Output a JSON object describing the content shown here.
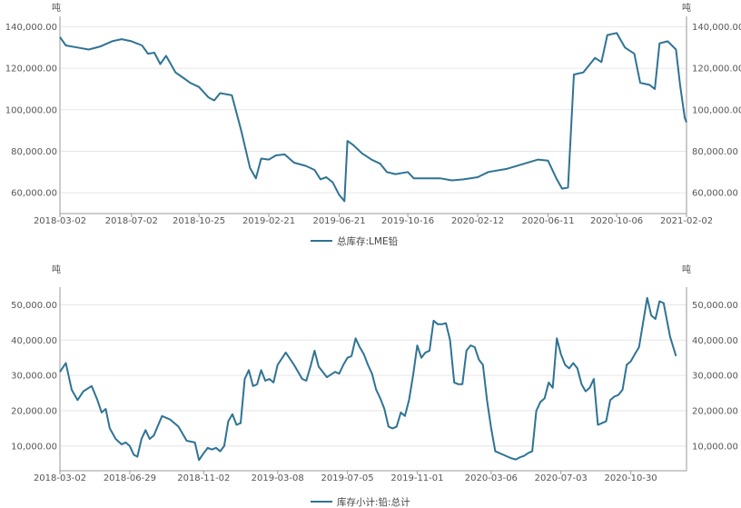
{
  "chart_data": [
    {
      "type": "line",
      "unit_left": "吨",
      "unit_right": "吨",
      "yticks": [
        "60,000.00",
        "80,000.00",
        "100,000.00",
        "120,000.00",
        "140,000.00"
      ],
      "ytick_values": [
        60000,
        80000,
        100000,
        120000,
        140000
      ],
      "ylim": [
        50000,
        145000
      ],
      "xticks": [
        "2018-03-02",
        "2018-07-02",
        "2018-10-25",
        "2019-02-21",
        "2019-06-21",
        "2019-10-16",
        "2020-02-12",
        "2020-06-11",
        "2020-10-06",
        "2021-02-02"
      ],
      "xlim": [
        "2018-03-02",
        "2021-02-02"
      ],
      "grid": true,
      "legend_position": "bottom-center",
      "series": [
        {
          "name": "总库存:LME铅",
          "color": "#2e7394",
          "points": [
            [
              "2018-03-02",
              135000
            ],
            [
              "2018-03-12",
              131000
            ],
            [
              "2018-04-01",
              130000
            ],
            [
              "2018-04-20",
              129000
            ],
            [
              "2018-05-10",
              130500
            ],
            [
              "2018-05-30",
              133000
            ],
            [
              "2018-06-15",
              134000
            ],
            [
              "2018-07-02",
              133000
            ],
            [
              "2018-07-20",
              131000
            ],
            [
              "2018-07-30",
              127000
            ],
            [
              "2018-08-10",
              127500
            ],
            [
              "2018-08-20",
              122000
            ],
            [
              "2018-08-30",
              126000
            ],
            [
              "2018-09-15",
              118000
            ],
            [
              "2018-09-30",
              115000
            ],
            [
              "2018-10-10",
              113000
            ],
            [
              "2018-10-25",
              111000
            ],
            [
              "2018-11-10",
              106000
            ],
            [
              "2018-11-20",
              104500
            ],
            [
              "2018-11-30",
              108000
            ],
            [
              "2018-12-20",
              107000
            ],
            [
              "2019-01-05",
              90000
            ],
            [
              "2019-01-20",
              72000
            ],
            [
              "2019-01-30",
              67000
            ],
            [
              "2019-02-08",
              76500
            ],
            [
              "2019-02-21",
              76000
            ],
            [
              "2019-03-05",
              78000
            ],
            [
              "2019-03-20",
              78500
            ],
            [
              "2019-04-05",
              74500
            ],
            [
              "2019-04-25",
              73000
            ],
            [
              "2019-05-10",
              71000
            ],
            [
              "2019-05-20",
              66500
            ],
            [
              "2019-05-30",
              67500
            ],
            [
              "2019-06-10",
              65000
            ],
            [
              "2019-06-21",
              59000
            ],
            [
              "2019-06-30",
              56000
            ],
            [
              "2019-07-05",
              85000
            ],
            [
              "2019-07-15",
              83000
            ],
            [
              "2019-07-30",
              79000
            ],
            [
              "2019-08-15",
              76000
            ],
            [
              "2019-08-30",
              74000
            ],
            [
              "2019-09-10",
              70000
            ],
            [
              "2019-09-25",
              69000
            ],
            [
              "2019-10-16",
              70000
            ],
            [
              "2019-10-26",
              67000
            ],
            [
              "2019-11-15",
              67000
            ],
            [
              "2019-12-10",
              67000
            ],
            [
              "2019-12-30",
              66000
            ],
            [
              "2020-01-20",
              66500
            ],
            [
              "2020-02-12",
              67500
            ],
            [
              "2020-03-01",
              70000
            ],
            [
              "2020-04-01",
              71500
            ],
            [
              "2020-05-01",
              74000
            ],
            [
              "2020-05-25",
              76000
            ],
            [
              "2020-06-11",
              75500
            ],
            [
              "2020-06-25",
              67000
            ],
            [
              "2020-07-05",
              62000
            ],
            [
              "2020-07-15",
              62500
            ],
            [
              "2020-07-25",
              117000
            ],
            [
              "2020-08-10",
              118000
            ],
            [
              "2020-08-30",
              125000
            ],
            [
              "2020-09-10",
              123000
            ],
            [
              "2020-09-20",
              136000
            ],
            [
              "2020-10-06",
              137000
            ],
            [
              "2020-10-20",
              130000
            ],
            [
              "2020-11-05",
              127000
            ],
            [
              "2020-11-15",
              113000
            ],
            [
              "2020-12-01",
              112000
            ],
            [
              "2020-12-10",
              110000
            ],
            [
              "2020-12-18",
              132000
            ],
            [
              "2021-01-01",
              133000
            ],
            [
              "2021-01-15",
              129000
            ],
            [
              "2021-01-22",
              112000
            ],
            [
              "2021-01-30",
              96000
            ],
            [
              "2021-02-02",
              94000
            ]
          ]
        }
      ]
    },
    {
      "type": "line",
      "unit_left": "吨",
      "unit_right": "吨",
      "yticks": [
        "10,000.00",
        "20,000.00",
        "30,000.00",
        "40,000.00",
        "50,000.00"
      ],
      "ytick_values": [
        10000,
        20000,
        30000,
        40000,
        50000
      ],
      "ylim": [
        3000,
        55000
      ],
      "xticks": [
        "2018-03-02",
        "2018-06-29",
        "2018-11-02",
        "2019-03-08",
        "2019-07-05",
        "2019-11-01",
        "2020-03-06",
        "2020-07-03",
        "2020-10-30"
      ],
      "xlim": [
        "2018-03-02",
        "2021-02-02"
      ],
      "grid": true,
      "legend_position": "bottom-center",
      "series": [
        {
          "name": "库存小计:铅:总计",
          "color": "#2e7394",
          "points": [
            [
              "2018-03-02",
              31000
            ],
            [
              "2018-03-12",
              33500
            ],
            [
              "2018-03-22",
              26000
            ],
            [
              "2018-04-01",
              23000
            ],
            [
              "2018-04-11",
              25500
            ],
            [
              "2018-04-25",
              27000
            ],
            [
              "2018-05-05",
              23000
            ],
            [
              "2018-05-12",
              19500
            ],
            [
              "2018-05-19",
              20500
            ],
            [
              "2018-05-26",
              15000
            ],
            [
              "2018-06-05",
              12000
            ],
            [
              "2018-06-15",
              10500
            ],
            [
              "2018-06-22",
              11000
            ],
            [
              "2018-06-29",
              10000
            ],
            [
              "2018-07-06",
              7500
            ],
            [
              "2018-07-12",
              7000
            ],
            [
              "2018-07-19",
              12000
            ],
            [
              "2018-07-26",
              14500
            ],
            [
              "2018-08-02",
              12000
            ],
            [
              "2018-08-09",
              13000
            ],
            [
              "2018-08-23",
              18500
            ],
            [
              "2018-09-06",
              17500
            ],
            [
              "2018-09-20",
              15500
            ],
            [
              "2018-10-04",
              11500
            ],
            [
              "2018-10-18",
              11000
            ],
            [
              "2018-10-25",
              6000
            ],
            [
              "2018-11-02",
              8000
            ],
            [
              "2018-11-09",
              9500
            ],
            [
              "2018-11-16",
              9000
            ],
            [
              "2018-11-23",
              9500
            ],
            [
              "2018-11-30",
              8500
            ],
            [
              "2018-12-07",
              10000
            ],
            [
              "2018-12-14",
              17000
            ],
            [
              "2018-12-21",
              19000
            ],
            [
              "2018-12-28",
              16000
            ],
            [
              "2019-01-04",
              16500
            ],
            [
              "2019-01-11",
              29000
            ],
            [
              "2019-01-18",
              31500
            ],
            [
              "2019-01-25",
              27000
            ],
            [
              "2019-02-01",
              27500
            ],
            [
              "2019-02-08",
              31500
            ],
            [
              "2019-02-15",
              28500
            ],
            [
              "2019-02-22",
              29000
            ],
            [
              "2019-03-01",
              28000
            ],
            [
              "2019-03-08",
              33000
            ],
            [
              "2019-03-22",
              36500
            ],
            [
              "2019-04-05",
              33000
            ],
            [
              "2019-04-19",
              29000
            ],
            [
              "2019-04-26",
              28500
            ],
            [
              "2019-05-03",
              32500
            ],
            [
              "2019-05-10",
              37000
            ],
            [
              "2019-05-17",
              32500
            ],
            [
              "2019-05-31",
              29500
            ],
            [
              "2019-06-14",
              31000
            ],
            [
              "2019-06-21",
              30500
            ],
            [
              "2019-06-28",
              33000
            ],
            [
              "2019-07-05",
              35000
            ],
            [
              "2019-07-12",
              35500
            ],
            [
              "2019-07-19",
              40500
            ],
            [
              "2019-07-26",
              38000
            ],
            [
              "2019-08-02",
              36000
            ],
            [
              "2019-08-09",
              33000
            ],
            [
              "2019-08-16",
              30500
            ],
            [
              "2019-08-23",
              26000
            ],
            [
              "2019-08-30",
              23500
            ],
            [
              "2019-09-06",
              20500
            ],
            [
              "2019-09-13",
              15500
            ],
            [
              "2019-09-20",
              15000
            ],
            [
              "2019-09-27",
              15500
            ],
            [
              "2019-10-04",
              19500
            ],
            [
              "2019-10-11",
              18500
            ],
            [
              "2019-10-18",
              23000
            ],
            [
              "2019-10-25",
              30000
            ],
            [
              "2019-11-01",
              38500
            ],
            [
              "2019-11-08",
              35000
            ],
            [
              "2019-11-15",
              36500
            ],
            [
              "2019-11-22",
              37000
            ],
            [
              "2019-11-29",
              45500
            ],
            [
              "2019-12-06",
              44500
            ],
            [
              "2019-12-13",
              44500
            ],
            [
              "2019-12-20",
              44800
            ],
            [
              "2019-12-27",
              40000
            ],
            [
              "2020-01-03",
              28000
            ],
            [
              "2020-01-10",
              27500
            ],
            [
              "2020-01-17",
              27500
            ],
            [
              "2020-01-24",
              37000
            ],
            [
              "2020-01-31",
              38500
            ],
            [
              "2020-02-07",
              38000
            ],
            [
              "2020-02-14",
              34500
            ],
            [
              "2020-02-21",
              33000
            ],
            [
              "2020-02-28",
              23000
            ],
            [
              "2020-03-06",
              15000
            ],
            [
              "2020-03-13",
              8500
            ],
            [
              "2020-03-20",
              8000
            ],
            [
              "2020-03-27",
              7500
            ],
            [
              "2020-04-03",
              7000
            ],
            [
              "2020-04-10",
              6500
            ],
            [
              "2020-04-17",
              6200
            ],
            [
              "2020-04-24",
              6800
            ],
            [
              "2020-05-01",
              7200
            ],
            [
              "2020-05-08",
              8000
            ],
            [
              "2020-05-15",
              8500
            ],
            [
              "2020-05-22",
              20000
            ],
            [
              "2020-05-29",
              22500
            ],
            [
              "2020-06-05",
              23500
            ],
            [
              "2020-06-12",
              28000
            ],
            [
              "2020-06-19",
              26500
            ],
            [
              "2020-06-26",
              40500
            ],
            [
              "2020-07-03",
              36000
            ],
            [
              "2020-07-10",
              33000
            ],
            [
              "2020-07-17",
              32000
            ],
            [
              "2020-07-24",
              33500
            ],
            [
              "2020-07-31",
              32000
            ],
            [
              "2020-08-07",
              27500
            ],
            [
              "2020-08-14",
              25500
            ],
            [
              "2020-08-21",
              26500
            ],
            [
              "2020-08-28",
              29000
            ],
            [
              "2020-09-04",
              16000
            ],
            [
              "2020-09-11",
              16500
            ],
            [
              "2020-09-18",
              17000
            ],
            [
              "2020-09-25",
              23000
            ],
            [
              "2020-10-02",
              24000
            ],
            [
              "2020-10-09",
              24500
            ],
            [
              "2020-10-16",
              26000
            ],
            [
              "2020-10-23",
              33000
            ],
            [
              "2020-10-30",
              34000
            ],
            [
              "2020-11-06",
              36000
            ],
            [
              "2020-11-13",
              38000
            ],
            [
              "2020-11-20",
              45000
            ],
            [
              "2020-11-27",
              52000
            ],
            [
              "2020-12-04",
              47000
            ],
            [
              "2020-12-11",
              46000
            ],
            [
              "2020-12-18",
              51000
            ],
            [
              "2020-12-25",
              50500
            ],
            [
              "2021-01-05",
              41000
            ],
            [
              "2021-01-15",
              35500
            ]
          ]
        }
      ]
    }
  ]
}
